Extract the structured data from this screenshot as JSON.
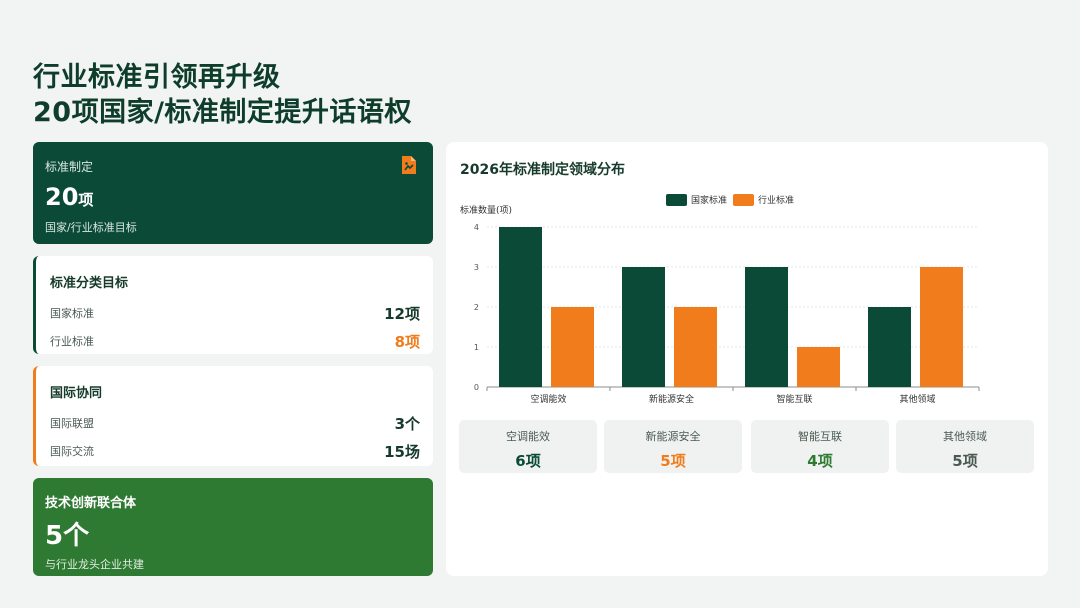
{
  "page": {
    "title_line1": "行业标准引领再升级",
    "title_line2": "20项国家/标准制定提升话语权"
  },
  "card_target": {
    "label": "标准制定",
    "value": "20",
    "unit": "项",
    "sub": "国家/行业标准目标",
    "icon": "document-icon"
  },
  "card_category": {
    "heading": "标准分类目标",
    "rows": [
      {
        "label": "国家标准",
        "value": "12项"
      },
      {
        "label": "行业标准",
        "value": "8项"
      }
    ]
  },
  "card_intl": {
    "heading": "国际协同",
    "rows": [
      {
        "label": "国际联盟",
        "value": "3个"
      },
      {
        "label": "国际交流",
        "value": "15场"
      }
    ]
  },
  "card_alliance": {
    "heading": "技术创新联合体",
    "value": "5个",
    "sub": "与行业龙头企业共建"
  },
  "colors": {
    "dark_green": "#0b4a37",
    "orange": "#f07c1b",
    "mid_green": "#2f7a32"
  },
  "chart_data": {
    "type": "bar",
    "title": "2026年标准制定领域分布",
    "ylabel": "标准数量(项)",
    "xlabel": "",
    "ylim": [
      0,
      4
    ],
    "yticks": [
      0,
      1,
      2,
      3,
      4
    ],
    "grid": true,
    "legend_position": "top",
    "categories": [
      "空调能效",
      "新能源安全",
      "智能互联",
      "其他领域"
    ],
    "series": [
      {
        "name": "国家标准",
        "color": "#0b4a37",
        "values": [
          4,
          3,
          3,
          2
        ]
      },
      {
        "name": "行业标准",
        "color": "#f07c1b",
        "values": [
          2,
          2,
          1,
          3
        ]
      }
    ]
  },
  "summary": [
    {
      "label": "空调能效",
      "value": "6项",
      "color": "#0b4a37"
    },
    {
      "label": "新能源安全",
      "value": "5项",
      "color": "#f07c1b"
    },
    {
      "label": "智能互联",
      "value": "4项",
      "color": "#2f7a32"
    },
    {
      "label": "其他领域",
      "value": "5项",
      "color": "#4a5a52"
    }
  ]
}
